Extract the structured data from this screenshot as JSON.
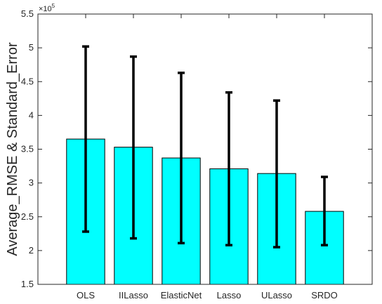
{
  "chart_data": {
    "type": "bar",
    "title": "",
    "xlabel": "",
    "ylabel": "Average_RMSE & Standard_Error",
    "y_exponent_label": "×10",
    "y_exponent_power": "5",
    "ylim": [
      1.5,
      5.5
    ],
    "y_ticks": [
      1.5,
      2,
      2.5,
      3,
      3.5,
      4,
      4.5,
      5,
      5.5
    ],
    "y_tick_labels": [
      "1.5",
      "2",
      "2.5",
      "3",
      "3.5",
      "4",
      "4.5",
      "5",
      "5.5"
    ],
    "categories": [
      "OLS",
      "IILasso",
      "ElasticNet",
      "Lasso",
      "ULasso",
      "SRDO"
    ],
    "values": [
      3.65,
      3.53,
      3.37,
      3.21,
      3.14,
      2.58
    ],
    "error_lower": [
      2.28,
      2.18,
      2.11,
      2.08,
      2.05,
      2.08
    ],
    "error_upper": [
      5.02,
      4.87,
      4.63,
      4.34,
      4.22,
      3.09
    ],
    "grid": false,
    "bar_color": "#00ffff",
    "errorbar_color": "#000000"
  }
}
